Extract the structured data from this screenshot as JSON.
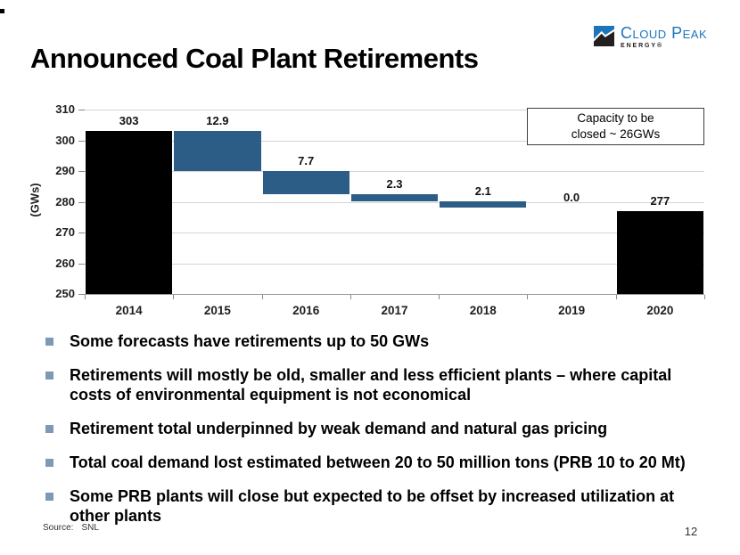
{
  "header": {
    "title": "Announced Coal Plant Retirements",
    "logo": {
      "name": "Cloud Peak",
      "subname": "ENERGY®",
      "brand_blue": "#1c75bb"
    }
  },
  "chart_data": {
    "type": "bar",
    "subtype": "waterfall",
    "title": "",
    "xlabel": "",
    "ylabel": "(GWs)",
    "ylim": [
      250,
      310
    ],
    "ytick_step": 10,
    "grid": true,
    "legend": "none",
    "categories": [
      "2014",
      "2015",
      "2016",
      "2017",
      "2018",
      "2019",
      "2020"
    ],
    "bars": [
      {
        "category": "2014",
        "from": 250,
        "to": 303,
        "label": "303",
        "role": "total"
      },
      {
        "category": "2015",
        "from": 303,
        "to": 290.1,
        "label": "12.9",
        "role": "decrease"
      },
      {
        "category": "2016",
        "from": 290.1,
        "to": 282.4,
        "label": "7.7",
        "role": "decrease"
      },
      {
        "category": "2017",
        "from": 282.4,
        "to": 280.1,
        "label": "2.3",
        "role": "decrease"
      },
      {
        "category": "2018",
        "from": 280.1,
        "to": 278.0,
        "label": "2.1",
        "role": "decrease"
      },
      {
        "category": "2019",
        "from": 278.0,
        "to": 278.0,
        "label": "0.0",
        "role": "decrease"
      },
      {
        "category": "2020",
        "from": 250,
        "to": 277,
        "label": "277",
        "role": "total"
      }
    ],
    "colors": {
      "total": "#000000",
      "decrease": "#2c5d87",
      "gridline": "#d4d4d4"
    },
    "callout": {
      "line1": "Capacity to be",
      "line2": "closed ~ 26GWs"
    }
  },
  "bullets": [
    "Some forecasts have retirements up to 50 GWs",
    "Retirements will mostly be old, smaller and less efficient plants – where capital costs of environmental equipment is not economical",
    "Retirement total underpinned by weak demand and natural gas pricing",
    "Total coal demand lost estimated between 20 to 50 million tons (PRB 10 to 20 Mt)",
    "Some PRB plants will close but expected to be offset by increased utilization at other plants"
  ],
  "footer": {
    "source_label": "Source:",
    "source_value": "SNL",
    "page_number": "12"
  }
}
